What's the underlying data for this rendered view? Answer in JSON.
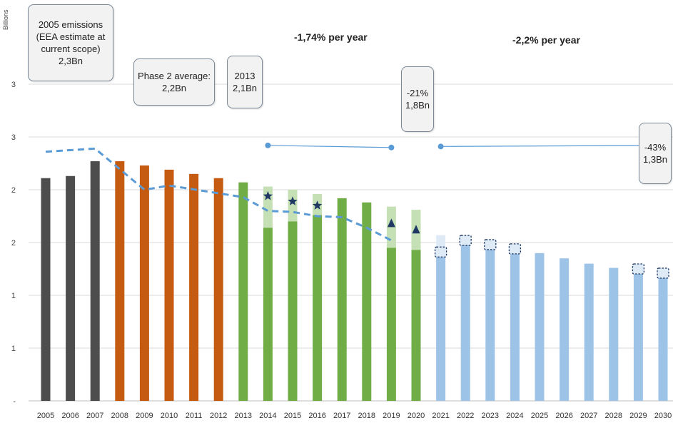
{
  "chart_data": {
    "type": "bar",
    "ylabel": "Billions",
    "y_tick_labels": [
      "-",
      "1",
      "1",
      "2",
      "2",
      "3",
      "3"
    ],
    "ylim": [
      0,
      3
    ],
    "grid": true,
    "categories": [
      "2005",
      "2006",
      "2007",
      "2008",
      "2009",
      "2010",
      "2011",
      "2012",
      "2013",
      "2014",
      "2015",
      "2016",
      "2017",
      "2018",
      "2019",
      "2020",
      "2021",
      "2022",
      "2023",
      "2024",
      "2025",
      "2026",
      "2027",
      "2028",
      "2029",
      "2030"
    ],
    "series": [
      {
        "phase": "phase1",
        "color": "#4d4d4d",
        "values": [
          2.11,
          2.13,
          2.27,
          null,
          null,
          null,
          null,
          null,
          null,
          null,
          null,
          null,
          null,
          null,
          null,
          null,
          null,
          null,
          null,
          null,
          null,
          null,
          null,
          null,
          null,
          null
        ]
      },
      {
        "phase": "phase2",
        "color": "#c55a11",
        "values": [
          null,
          null,
          null,
          2.27,
          2.23,
          2.19,
          2.15,
          2.11,
          null,
          null,
          null,
          null,
          null,
          null,
          null,
          null,
          null,
          null,
          null,
          null,
          null,
          null,
          null,
          null,
          null,
          null
        ]
      },
      {
        "phase": "phase3",
        "color": "#70ad47",
        "light_color": "#c5e0b4",
        "values": [
          null,
          null,
          null,
          null,
          null,
          null,
          null,
          null,
          2.07,
          1.64,
          1.7,
          1.76,
          1.92,
          1.88,
          1.45,
          1.43,
          null,
          null,
          null,
          null,
          null,
          null,
          null,
          null,
          null,
          null
        ],
        "upper": [
          null,
          null,
          null,
          null,
          null,
          null,
          null,
          null,
          null,
          2.03,
          2.0,
          1.96,
          null,
          null,
          1.84,
          1.81,
          null,
          null,
          null,
          null,
          null,
          null,
          null,
          null,
          null,
          null
        ]
      },
      {
        "phase": "phase4",
        "color": "#9dc3e6",
        "light_color": "#deebf7",
        "values": [
          null,
          null,
          null,
          null,
          null,
          null,
          null,
          null,
          null,
          null,
          null,
          null,
          null,
          null,
          null,
          null,
          1.4,
          1.5,
          1.47,
          1.43,
          1.4,
          1.35,
          1.3,
          1.26,
          1.21,
          1.17
        ],
        "upper": [
          null,
          null,
          null,
          null,
          null,
          null,
          null,
          null,
          null,
          null,
          null,
          null,
          null,
          null,
          null,
          null,
          1.57,
          null,
          null,
          null,
          null,
          null,
          null,
          null,
          null,
          null
        ]
      }
    ],
    "dashed_line": {
      "x": [
        "2005",
        "2007",
        "2009",
        "2010",
        "2013",
        "2014",
        "2015",
        "2016",
        "2017",
        "2018",
        "2019"
      ],
      "values": [
        2.36,
        2.39,
        2.0,
        2.04,
        1.93,
        1.8,
        1.79,
        1.75,
        1.74,
        1.64,
        1.52
      ]
    },
    "star_markers": [
      {
        "x": "2014",
        "y": 1.94
      },
      {
        "x": "2015",
        "y": 1.89
      },
      {
        "x": "2016",
        "y": 1.85
      }
    ],
    "triangle_markers": [
      {
        "x": "2019",
        "y": 1.68
      },
      {
        "x": "2020",
        "y": 1.62
      }
    ],
    "dashed_boxes": [
      {
        "x": "2021",
        "y": 1.41
      },
      {
        "x": "2022",
        "y": 1.52
      },
      {
        "x": "2023",
        "y": 1.48
      },
      {
        "x": "2024",
        "y": 1.44
      },
      {
        "x": "2029",
        "y": 1.25
      },
      {
        "x": "2030",
        "y": 1.21
      }
    ],
    "trend_lines": [
      {
        "x1": "2014",
        "x2": "2019",
        "y1": 2.42,
        "y2": 2.4
      },
      {
        "x1": "2021",
        "x2": "2030",
        "y1": 2.41,
        "y2": 2.42
      }
    ]
  },
  "annotations": {
    "emissions_2005": {
      "lines": [
        "2005 emissions",
        "(EEA estimate at",
        "current scope)",
        "2,3Bn"
      ]
    },
    "phase2_average": {
      "lines": [
        "Phase 2 average:",
        "2,2Bn"
      ]
    },
    "cap_2013": {
      "lines": [
        "2013",
        "2,1Bn"
      ]
    },
    "cap_2020": {
      "lines": [
        "-21%",
        "1,8Bn"
      ]
    },
    "cap_2030": {
      "lines": [
        "-43%",
        "1,3Bn"
      ]
    },
    "rate_phase3": "-1,74% per year",
    "rate_phase4": "-2,2% per year"
  }
}
